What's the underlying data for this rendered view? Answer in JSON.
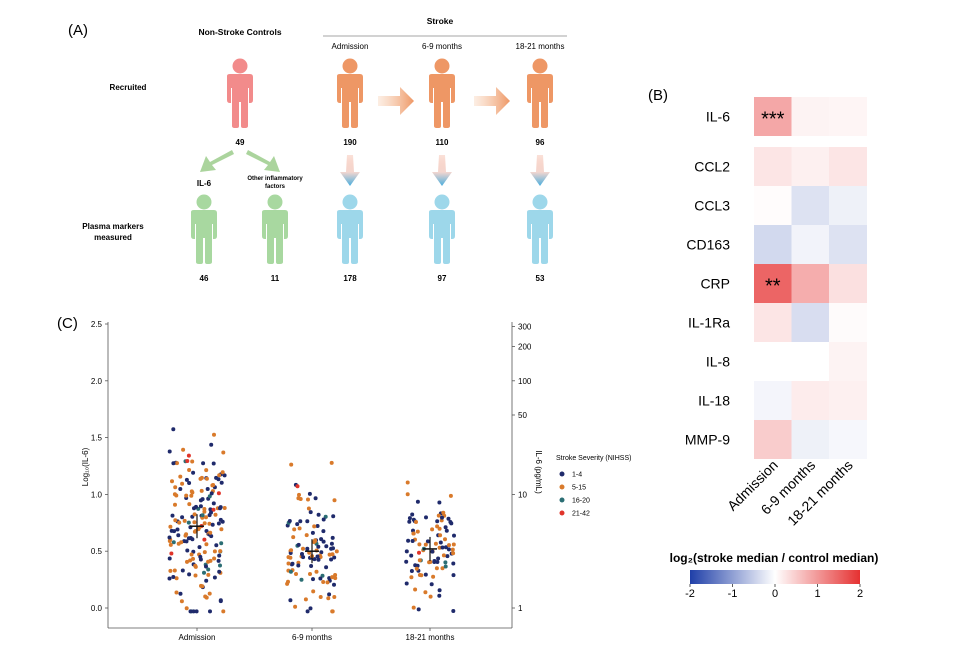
{
  "panel_a": {
    "label": "(A)",
    "controls_title": "Non-Stroke Controls",
    "stroke_title": "Stroke",
    "timepoints": [
      "Admission",
      "6-9 months",
      "18-21 months"
    ],
    "row_recruited": "Recruited",
    "row_plasma": [
      "Plasma markers",
      "measured"
    ],
    "recruited_counts": {
      "controls": "49",
      "admission": "190",
      "m6_9": "110",
      "m18_21": "96"
    },
    "control_split": {
      "il6_label": "IL-6",
      "other_label": [
        "Other inflammatory",
        "factors"
      ]
    },
    "measured_counts": {
      "il6": "46",
      "other": "11",
      "admission": "178",
      "m6_9": "97",
      "m18_21": "53"
    },
    "colors": {
      "control": "#f28b8b",
      "stroke": "#ee9765",
      "measured_control": "#a8d8a0",
      "measured_stroke": "#9dd7ea",
      "arrow_blue": "#4aaede",
      "arrow_green": "#9ccc8c"
    }
  },
  "panel_b": {
    "label": "(B)",
    "rows": [
      "IL-6",
      "CCL2",
      "CCL3",
      "CD163",
      "CRP",
      "IL-1Ra",
      "IL-8",
      "IL-18",
      "MMP-9"
    ],
    "columns": [
      "Admission",
      "6-9 months",
      "18-21 months"
    ],
    "values": [
      [
        0.85,
        0.12,
        0.1
      ],
      [
        0.25,
        0.15,
        0.25
      ],
      [
        0.03,
        -0.3,
        -0.15
      ],
      [
        -0.4,
        -0.12,
        -0.3
      ],
      [
        1.5,
        0.8,
        0.3
      ],
      [
        0.25,
        -0.35,
        0.04
      ],
      [
        0.0,
        0.0,
        0.12
      ],
      [
        -0.1,
        0.18,
        0.15
      ],
      [
        0.5,
        -0.15,
        -0.08
      ]
    ],
    "significance": [
      "***",
      "",
      "",
      "",
      "**",
      "",
      "",
      "",
      ""
    ],
    "colorbar_title": "log₂(stroke median / control median)",
    "colorbar_ticks": [
      "-2",
      "-1",
      "0",
      "1",
      "2"
    ],
    "colors": {
      "low": "#1f3fa8",
      "mid": "#ffffff",
      "high": "#e53131"
    }
  },
  "chart_data": {
    "type": "scatter",
    "title": "(C)",
    "categories": [
      "Admission",
      "6-9 months",
      "18-21 months"
    ],
    "ylabel": "Log₁₀(IL-6)",
    "ylabel_right": "IL-6 (pg/mL)",
    "ylim": [
      -0.1,
      2.5
    ],
    "yticks": [
      "0.0",
      "0.5",
      "1.0",
      "1.5",
      "2.0",
      "2.5"
    ],
    "right_ticks": [
      "1",
      "10",
      "50",
      "100",
      "200",
      "300"
    ],
    "right_tick_values": [
      1,
      10,
      50,
      100,
      200,
      300
    ],
    "means": [
      0.72,
      0.5,
      0.52
    ],
    "counts": [
      190,
      110,
      96
    ],
    "legend": {
      "title": "Stroke Severity (NIHSS)",
      "entries": [
        "1-4",
        "5-15",
        "16-20",
        "21-42"
      ],
      "colors": [
        "#1f2a6b",
        "#d97a2b",
        "#2b6e74",
        "#e0342a"
      ]
    }
  }
}
